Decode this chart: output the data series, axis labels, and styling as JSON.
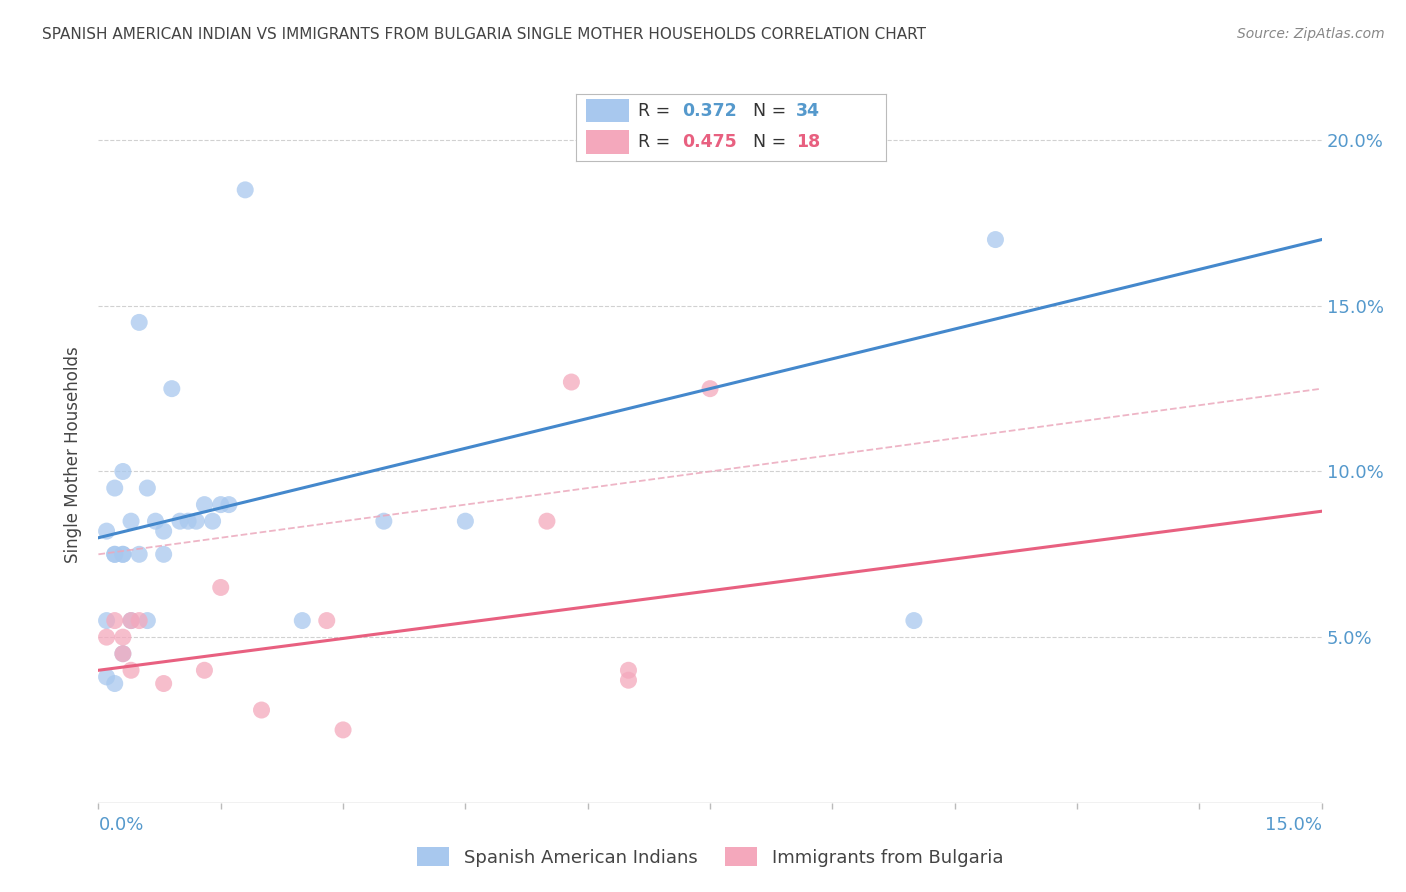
{
  "title": "SPANISH AMERICAN INDIAN VS IMMIGRANTS FROM BULGARIA SINGLE MOTHER HOUSEHOLDS CORRELATION CHART",
  "source": "Source: ZipAtlas.com",
  "ylabel": "Single Mother Households",
  "xlim": [
    0.0,
    0.15
  ],
  "ylim": [
    0.0,
    0.21
  ],
  "legend_blue_r": "0.372",
  "legend_blue_n": "34",
  "legend_pink_r": "0.475",
  "legend_pink_n": "18",
  "legend_label_blue": "Spanish American Indians",
  "legend_label_pink": "Immigrants from Bulgaria",
  "blue_scatter_x": [
    0.001,
    0.002,
    0.003,
    0.004,
    0.005,
    0.006,
    0.007,
    0.008,
    0.009,
    0.01,
    0.011,
    0.012,
    0.013,
    0.014,
    0.015,
    0.002,
    0.003,
    0.004,
    0.005,
    0.006,
    0.001,
    0.002,
    0.003,
    0.001,
    0.002,
    0.003,
    0.008,
    0.016,
    0.018,
    0.025,
    0.035,
    0.045,
    0.1,
    0.11
  ],
  "blue_scatter_y": [
    0.082,
    0.095,
    0.1,
    0.085,
    0.145,
    0.095,
    0.085,
    0.075,
    0.125,
    0.085,
    0.085,
    0.085,
    0.09,
    0.085,
    0.09,
    0.075,
    0.075,
    0.055,
    0.075,
    0.055,
    0.055,
    0.075,
    0.045,
    0.038,
    0.036,
    0.075,
    0.082,
    0.09,
    0.185,
    0.055,
    0.085,
    0.085,
    0.055,
    0.17
  ],
  "pink_scatter_x": [
    0.001,
    0.002,
    0.003,
    0.004,
    0.005,
    0.003,
    0.004,
    0.008,
    0.013,
    0.015,
    0.02,
    0.028,
    0.03,
    0.055,
    0.058,
    0.065,
    0.065,
    0.075
  ],
  "pink_scatter_y": [
    0.05,
    0.055,
    0.05,
    0.055,
    0.055,
    0.045,
    0.04,
    0.036,
    0.04,
    0.065,
    0.028,
    0.055,
    0.022,
    0.085,
    0.127,
    0.04,
    0.037,
    0.125
  ],
  "blue_line_x": [
    0.0,
    0.15
  ],
  "blue_line_y": [
    0.08,
    0.17
  ],
  "pink_line_x": [
    0.0,
    0.15
  ],
  "pink_line_y": [
    0.04,
    0.088
  ],
  "pink_dash_line_x": [
    0.0,
    0.15
  ],
  "pink_dash_line_y": [
    0.075,
    0.125
  ],
  "blue_color": "#A8C8EE",
  "pink_color": "#F4A8BC",
  "blue_line_color": "#4488CC",
  "pink_line_color": "#E86080",
  "pink_dash_color": "#EBA8BC",
  "grid_color": "#CCCCCC",
  "background_color": "#FFFFFF",
  "title_color": "#444444",
  "source_color": "#888888",
  "tick_color": "#5599CC"
}
